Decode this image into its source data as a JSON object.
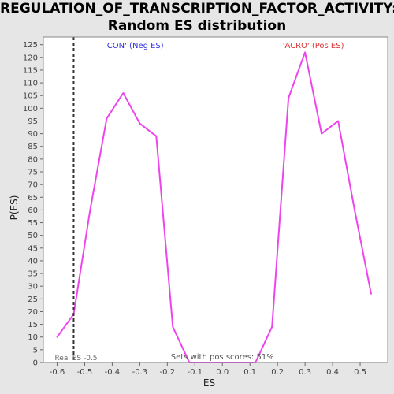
{
  "title_line1": "REGULATION_OF_TRANSCRIPTION_FACTOR_ACTIVITY:",
  "title_line2": "Random ES distribution",
  "chart_data": {
    "type": "line",
    "xlabel": "ES",
    "ylabel": "P(ES)",
    "xlim": [
      -0.65,
      0.6
    ],
    "ylim": [
      0,
      128
    ],
    "xticks": [
      -0.6,
      -0.5,
      -0.4,
      -0.3,
      -0.2,
      -0.1,
      0.0,
      0.1,
      0.2,
      0.3,
      0.4,
      0.5
    ],
    "xtick_labels": [
      "-0.6",
      "-0.5",
      "-0.4",
      "-0.3",
      "-0.2",
      "-0.1",
      "0.0",
      "0.1",
      "0.2",
      "0.3",
      "0.4",
      "0.5"
    ],
    "yticks": [
      0,
      5,
      10,
      15,
      20,
      25,
      30,
      35,
      40,
      45,
      50,
      55,
      60,
      65,
      70,
      75,
      80,
      85,
      90,
      95,
      100,
      105,
      110,
      115,
      120,
      125
    ],
    "series": [
      {
        "color": "#ee44ee",
        "x": [
          -0.6,
          -0.54,
          -0.48,
          -0.42,
          -0.36,
          -0.3,
          -0.24,
          -0.18,
          -0.12,
          -0.06,
          0.0,
          0.06,
          0.12,
          0.18,
          0.24,
          0.3,
          0.36,
          0.42,
          0.48,
          0.54
        ],
        "y": [
          10,
          19,
          60,
          96,
          106,
          94,
          89,
          14,
          0,
          0,
          0,
          0,
          0,
          14,
          104,
          122,
          90,
          95,
          60,
          27
        ]
      }
    ],
    "real_es": -0.54,
    "real_es_label": "Real ES -0.5",
    "neg_label": "'CON' (Neg ES)",
    "neg_label_color": "#3333dd",
    "pos_label": "'ACRO' (Pos ES)",
    "pos_label_color": "#dd3333",
    "pos_scores_text": "Sets with pos scores: 51%",
    "grid": false
  }
}
